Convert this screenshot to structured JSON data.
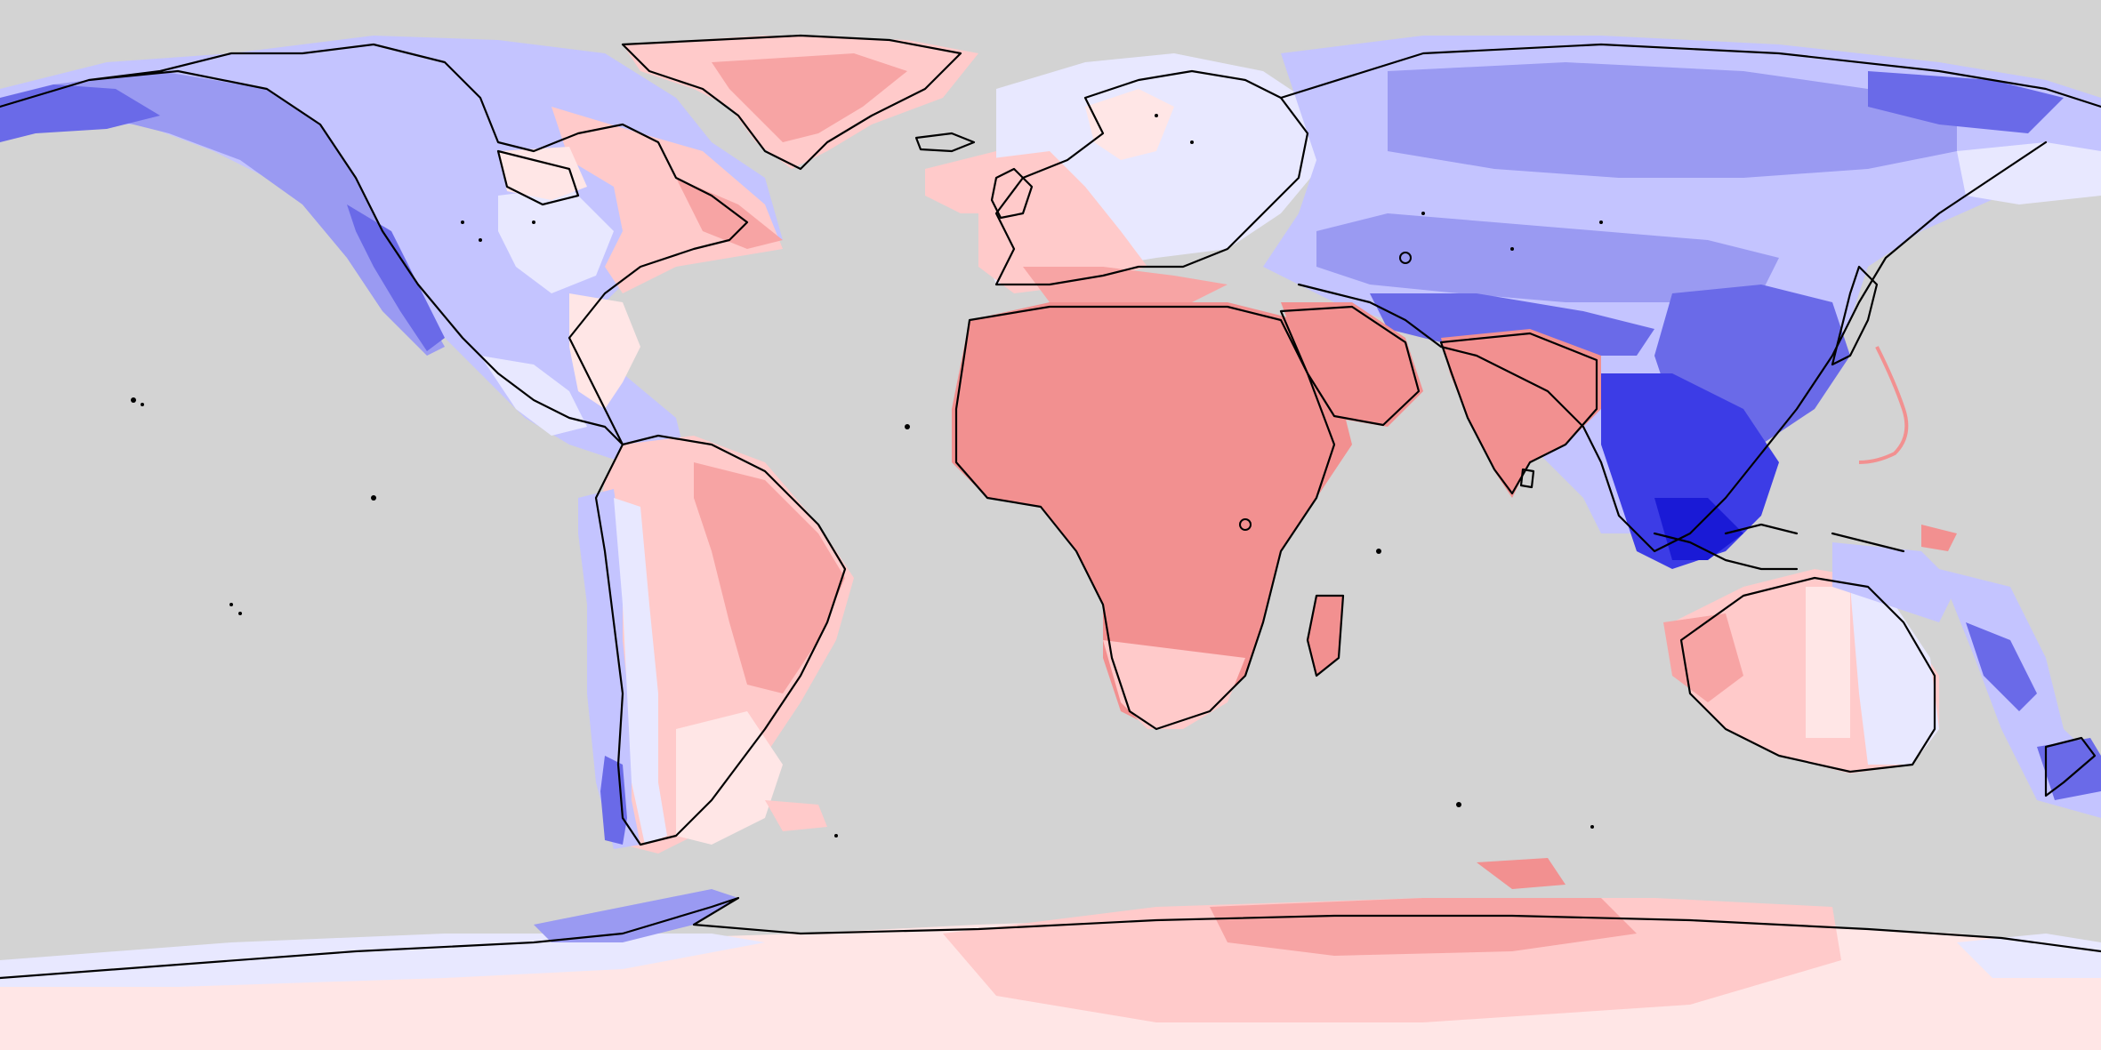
{
  "map": {
    "projection": "equirectangular",
    "extent": "global",
    "background_color": "#d3d3d3",
    "coastline_color": "#000000",
    "palette": {
      "blue_1": "#e8e8ff",
      "blue_2": "#c4c4ff",
      "blue_3": "#9a9af2",
      "blue_4": "#6a6ae8",
      "blue_5": "#3c3ce6",
      "blue_6": "#1a1ad6",
      "red_1": "#ffe6e6",
      "red_2": "#ffcaca",
      "red_3": "#f7a4a4",
      "red_4": "#f29090"
    },
    "legend": null,
    "labels": []
  }
}
